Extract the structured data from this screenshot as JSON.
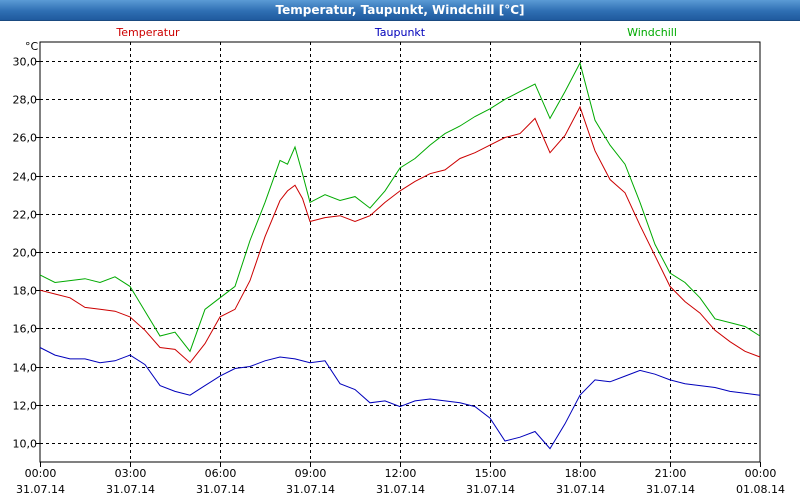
{
  "window": {
    "title": "Temperatur, Taupunkt, Windchill [°C]"
  },
  "colors": {
    "temperatur": "#cc0000",
    "taupunkt": "#0000bb",
    "windchill": "#00aa00",
    "grid": "#000000",
    "titlebar": "#2f6fb3"
  },
  "chart_data": {
    "type": "line",
    "title": "Temperatur, Taupunkt, Windchill [°C]",
    "unit": "°C",
    "ylim": [
      9.0,
      31.0
    ],
    "yticks": [
      "30,0",
      "28,0",
      "26,0",
      "24,0",
      "22,0",
      "20,0",
      "18,0",
      "16,0",
      "14,0",
      "12,0",
      "10,0"
    ],
    "ytick_values": [
      30,
      28,
      26,
      24,
      22,
      20,
      18,
      16,
      14,
      12,
      10
    ],
    "xlim": [
      0,
      24
    ],
    "xtick_values": [
      0,
      3,
      6,
      9,
      12,
      15,
      18,
      21,
      24
    ],
    "xticks": [
      {
        "time": "00:00",
        "date": "31.07.14"
      },
      {
        "time": "03:00",
        "date": "31.07.14"
      },
      {
        "time": "06:00",
        "date": "31.07.14"
      },
      {
        "time": "09:00",
        "date": "31.07.14"
      },
      {
        "time": "12:00",
        "date": "31.07.14"
      },
      {
        "time": "15:00",
        "date": "31.07.14"
      },
      {
        "time": "18:00",
        "date": "31.07.14"
      },
      {
        "time": "21:00",
        "date": "31.07.14"
      },
      {
        "time": "00:00",
        "date": "01.08.14"
      }
    ],
    "grid": true,
    "legend_position": "top",
    "series": [
      {
        "name": "Temperatur",
        "color": "#cc0000",
        "x": [
          0,
          0.5,
          1,
          1.5,
          2,
          2.5,
          3,
          3.5,
          4,
          4.5,
          5,
          5.5,
          6,
          6.5,
          7,
          7.5,
          8,
          8.25,
          8.5,
          8.75,
          9,
          9.5,
          10,
          10.5,
          11,
          11.5,
          12,
          12.5,
          13,
          13.5,
          14,
          14.5,
          15,
          15.5,
          16,
          16.5,
          17,
          17.5,
          18,
          18.5,
          19,
          19.5,
          20,
          20.5,
          21,
          21.5,
          22,
          22.5,
          23,
          23.5,
          24
        ],
        "values": [
          18.0,
          17.8,
          17.6,
          17.1,
          17.0,
          16.9,
          16.6,
          15.9,
          15.0,
          14.9,
          14.2,
          15.2,
          16.6,
          17.0,
          18.5,
          20.8,
          22.7,
          23.2,
          23.5,
          22.8,
          21.6,
          21.8,
          21.9,
          21.6,
          21.9,
          22.6,
          23.2,
          23.7,
          24.1,
          24.3,
          24.9,
          25.2,
          25.6,
          26.0,
          26.2,
          27.0,
          25.2,
          26.1,
          27.6,
          25.3,
          23.8,
          23.1,
          21.4,
          19.8,
          18.2,
          17.4,
          16.8,
          15.9,
          15.3,
          14.8,
          14.5
        ]
      },
      {
        "name": "Taupunkt",
        "color": "#0000bb",
        "x": [
          0,
          0.5,
          1,
          1.5,
          2,
          2.5,
          3,
          3.5,
          4,
          4.5,
          5,
          5.5,
          6,
          6.5,
          7,
          7.5,
          8,
          8.5,
          9,
          9.5,
          10,
          10.5,
          11,
          11.5,
          12,
          12.5,
          13,
          13.5,
          14,
          14.5,
          15,
          15.5,
          16,
          16.5,
          17,
          17.5,
          18,
          18.5,
          19,
          19.5,
          20,
          20.5,
          21,
          21.5,
          22,
          22.5,
          23,
          23.5,
          24
        ],
        "values": [
          15.0,
          14.6,
          14.4,
          14.4,
          14.2,
          14.3,
          14.6,
          14.1,
          13.0,
          12.7,
          12.5,
          13.0,
          13.5,
          13.9,
          14.0,
          14.3,
          14.5,
          14.4,
          14.2,
          14.3,
          13.1,
          12.8,
          12.1,
          12.2,
          11.9,
          12.2,
          12.3,
          12.2,
          12.1,
          11.9,
          11.3,
          10.1,
          10.3,
          10.6,
          9.7,
          11.0,
          12.5,
          13.3,
          13.2,
          13.5,
          13.8,
          13.6,
          13.3,
          13.1,
          13.0,
          12.9,
          12.7,
          12.6,
          12.5
        ]
      },
      {
        "name": "Windchill",
        "color": "#00aa00",
        "x": [
          0,
          0.5,
          1,
          1.5,
          2,
          2.5,
          3,
          3.5,
          4,
          4.5,
          5,
          5.5,
          6,
          6.5,
          7,
          7.5,
          8,
          8.25,
          8.5,
          8.75,
          9,
          9.5,
          10,
          10.5,
          11,
          11.5,
          12,
          12.5,
          13,
          13.5,
          14,
          14.5,
          15,
          15.5,
          16,
          16.5,
          17,
          17.5,
          18,
          18.5,
          19,
          19.5,
          20,
          20.5,
          21,
          21.5,
          22,
          22.5,
          23,
          23.5,
          24
        ],
        "values": [
          18.8,
          18.4,
          18.5,
          18.6,
          18.4,
          18.7,
          18.2,
          16.9,
          15.6,
          15.8,
          14.8,
          17.0,
          17.6,
          18.2,
          20.6,
          22.6,
          24.8,
          24.6,
          25.5,
          24.1,
          22.6,
          23.0,
          22.7,
          22.9,
          22.3,
          23.2,
          24.4,
          24.9,
          25.6,
          26.2,
          26.6,
          27.1,
          27.5,
          28.0,
          28.4,
          28.8,
          27.0,
          28.4,
          29.9,
          26.9,
          25.6,
          24.6,
          22.6,
          20.4,
          18.9,
          18.4,
          17.6,
          16.5,
          16.3,
          16.1,
          15.6
        ]
      }
    ]
  }
}
